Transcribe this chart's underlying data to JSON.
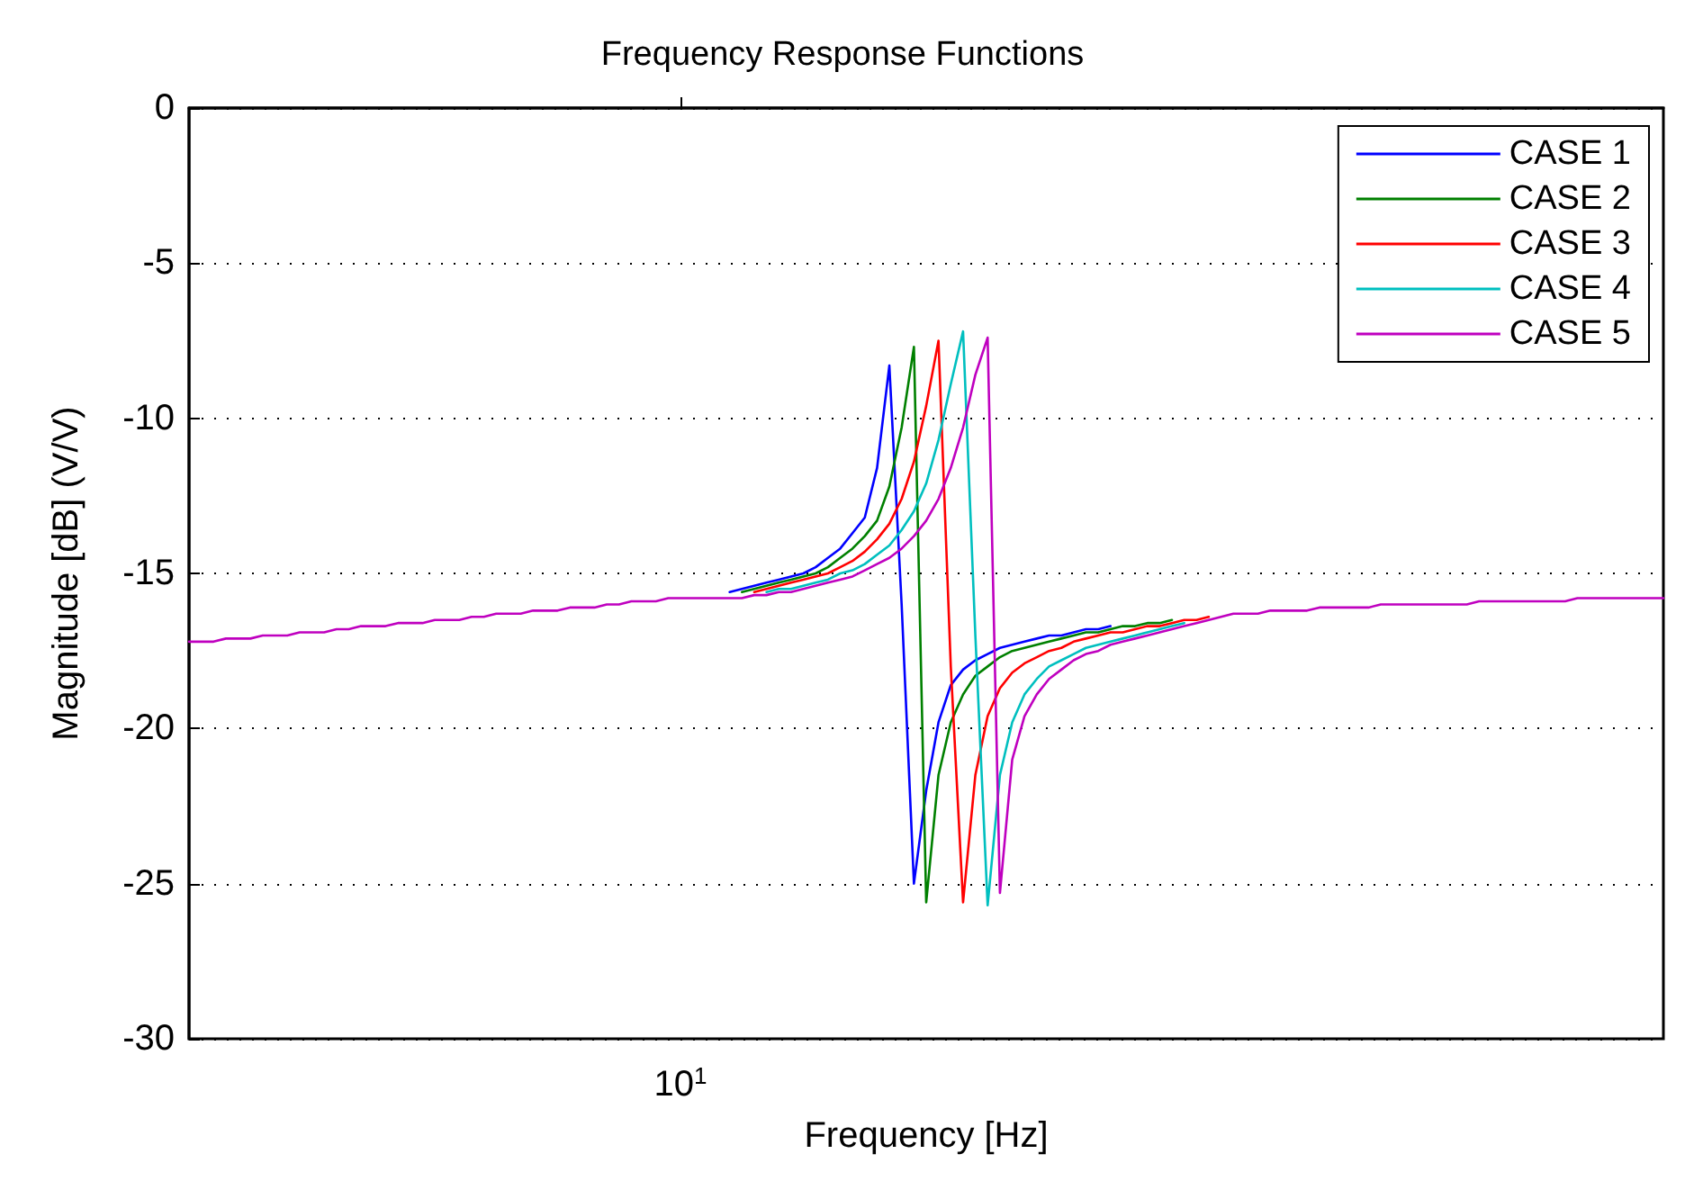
{
  "chart_data": {
    "type": "line",
    "title": "Frequency Response Functions",
    "xlabel": "Frequency [Hz]",
    "ylabel": "Magnitude [dB] (V/V)",
    "categories": [
      null,
      null,
      null,
      null,
      null,
      null,
      null,
      null,
      null,
      null,
      null,
      null,
      null,
      null,
      null,
      null,
      null,
      null,
      null,
      null,
      null,
      null,
      null,
      null,
      null,
      null,
      null,
      null,
      null,
      null,
      null,
      null,
      null,
      null,
      null,
      null,
      null,
      null,
      null,
      null,
      "10$^{1}$",
      null,
      null,
      null,
      null,
      null,
      null,
      null,
      null,
      null,
      null,
      null,
      null,
      null,
      null,
      null,
      null,
      null,
      null,
      null,
      null,
      null,
      null,
      null,
      null,
      null,
      null,
      null,
      null,
      null,
      null,
      null,
      null,
      null,
      null,
      null,
      null,
      null,
      null,
      null,
      null,
      null,
      null,
      null,
      null,
      null,
      null,
      null,
      null,
      null,
      null,
      null,
      null,
      null,
      null,
      null,
      null,
      null,
      null,
      null,
      null,
      null,
      null,
      null,
      null,
      null,
      null,
      null,
      null,
      null,
      null,
      null,
      null,
      null,
      null,
      null,
      null,
      null,
      null,
      null,
      null
    ],
    "ylim": [
      -30,
      0
    ],
    "yticks": [
      -30,
      -25,
      -20,
      -15,
      -10,
      -5,
      0
    ],
    "grid": "y",
    "legend": "top right",
    "marker": "none",
    "line_style": "solid",
    "series": [
      {
        "name": "CASE 1",
        "color": "#0000ff",
        "values": [
          null,
          null,
          null,
          null,
          null,
          null,
          null,
          null,
          null,
          null,
          null,
          null,
          null,
          null,
          null,
          null,
          null,
          null,
          null,
          null,
          null,
          null,
          null,
          null,
          null,
          null,
          null,
          null,
          null,
          null,
          null,
          null,
          null,
          null,
          null,
          null,
          null,
          null,
          null,
          null,
          null,
          null,
          null,
          null,
          -15.6,
          -15.5,
          -15.4,
          -15.3,
          -15.2,
          -15.1,
          -15.0,
          -14.8,
          -14.5,
          -14.2,
          -13.7,
          -13.2,
          -11.6,
          -8.3,
          -16.0,
          -25.0,
          -22.0,
          -19.8,
          -18.6,
          -18.1,
          -17.8,
          -17.6,
          -17.4,
          -17.3,
          -17.2,
          -17.1,
          -17.0,
          -17.0,
          -16.9,
          -16.8,
          -16.8,
          -16.7,
          null,
          null,
          null,
          null,
          null,
          null,
          null,
          null,
          null,
          null,
          null,
          null,
          null,
          null,
          null,
          null,
          null,
          null,
          null,
          null,
          null,
          null,
          null,
          null,
          null,
          null,
          null,
          null,
          null,
          null,
          null,
          null,
          null,
          null,
          null,
          null,
          null,
          null,
          null,
          null,
          null,
          null,
          null,
          null,
          null
        ]
      },
      {
        "name": "CASE 2",
        "color": "#008000",
        "values": [
          null,
          null,
          null,
          null,
          null,
          null,
          null,
          null,
          null,
          null,
          null,
          null,
          null,
          null,
          null,
          null,
          null,
          null,
          null,
          null,
          null,
          null,
          null,
          null,
          null,
          null,
          null,
          null,
          null,
          null,
          null,
          null,
          null,
          null,
          null,
          null,
          null,
          null,
          null,
          null,
          null,
          null,
          null,
          null,
          null,
          -15.6,
          -15.5,
          -15.4,
          -15.3,
          -15.2,
          -15.1,
          -15.0,
          -14.8,
          -14.5,
          -14.2,
          -13.8,
          -13.3,
          -12.2,
          -10.3,
          -7.7,
          -25.6,
          -21.5,
          -19.8,
          -18.9,
          -18.3,
          -18.0,
          -17.7,
          -17.5,
          -17.4,
          -17.3,
          -17.2,
          -17.1,
          -17.0,
          -16.9,
          -16.9,
          -16.8,
          -16.7,
          -16.7,
          -16.6,
          -16.6,
          -16.5,
          null,
          null,
          null,
          null,
          null,
          null,
          null,
          null,
          null,
          null,
          null,
          null,
          null,
          null,
          null,
          null,
          null,
          null,
          null,
          null,
          null,
          null,
          null,
          null,
          null,
          null,
          null,
          null,
          null,
          null,
          null,
          null,
          null,
          null,
          null,
          null,
          null,
          null,
          null,
          null
        ]
      },
      {
        "name": "CASE 3",
        "color": "#ff0000",
        "values": [
          null,
          null,
          null,
          null,
          null,
          null,
          null,
          null,
          null,
          null,
          null,
          null,
          null,
          null,
          null,
          null,
          null,
          null,
          null,
          null,
          null,
          null,
          null,
          null,
          null,
          null,
          null,
          null,
          null,
          null,
          null,
          null,
          null,
          null,
          null,
          null,
          null,
          null,
          null,
          null,
          null,
          null,
          null,
          null,
          null,
          null,
          -15.6,
          -15.5,
          -15.4,
          -15.3,
          -15.2,
          -15.1,
          -15.0,
          -14.8,
          -14.6,
          -14.3,
          -13.9,
          -13.4,
          -12.6,
          -11.4,
          -9.6,
          -7.5,
          -18.0,
          -25.6,
          -21.5,
          -19.6,
          -18.7,
          -18.2,
          -17.9,
          -17.7,
          -17.5,
          -17.4,
          -17.2,
          -17.1,
          -17.0,
          -16.9,
          -16.9,
          -16.8,
          -16.7,
          -16.7,
          -16.6,
          -16.5,
          -16.5,
          -16.4,
          null,
          null,
          null,
          null,
          null,
          null,
          null,
          null,
          null,
          null,
          null,
          null,
          null,
          null,
          null,
          null,
          null,
          null,
          null,
          null,
          null,
          null,
          null,
          null,
          null,
          null,
          null,
          null,
          null,
          null,
          null,
          null,
          null,
          null,
          null,
          null,
          null
        ]
      },
      {
        "name": "CASE 4",
        "color": "#00bfbf",
        "values": [
          null,
          null,
          null,
          null,
          null,
          null,
          null,
          null,
          null,
          null,
          null,
          null,
          null,
          null,
          null,
          null,
          null,
          null,
          null,
          null,
          null,
          null,
          null,
          null,
          null,
          null,
          null,
          null,
          null,
          null,
          null,
          null,
          null,
          null,
          null,
          null,
          null,
          null,
          null,
          null,
          null,
          null,
          null,
          null,
          null,
          null,
          null,
          -15.6,
          -15.5,
          -15.5,
          -15.4,
          -15.3,
          -15.2,
          -15.0,
          -14.9,
          -14.7,
          -14.4,
          -14.1,
          -13.6,
          -13.0,
          -12.1,
          -10.7,
          -8.9,
          -7.2,
          -17.0,
          -25.7,
          -21.5,
          -19.8,
          -18.9,
          -18.4,
          -18.0,
          -17.8,
          -17.6,
          -17.4,
          -17.3,
          -17.2,
          -17.1,
          -17.0,
          -16.9,
          -16.8,
          -16.7,
          -16.6,
          null,
          null,
          null,
          null,
          null,
          null,
          null,
          null,
          null,
          null,
          null,
          null,
          null,
          null,
          null,
          null,
          null,
          null,
          null,
          null,
          null,
          null,
          null,
          null,
          null,
          null,
          null,
          null,
          null,
          null,
          null,
          null,
          null,
          null,
          null,
          null,
          null,
          null,
          null
        ]
      },
      {
        "name": "CASE 5",
        "color": "#bf00bf",
        "values": [
          -17.2,
          -17.2,
          -17.2,
          -17.1,
          -17.1,
          -17.1,
          -17.0,
          -17.0,
          -17.0,
          -16.9,
          -16.9,
          -16.9,
          -16.8,
          -16.8,
          -16.7,
          -16.7,
          -16.7,
          -16.6,
          -16.6,
          -16.6,
          -16.5,
          -16.5,
          -16.5,
          -16.4,
          -16.4,
          -16.3,
          -16.3,
          -16.3,
          -16.2,
          -16.2,
          -16.2,
          -16.1,
          -16.1,
          -16.1,
          -16.0,
          -16.0,
          -15.9,
          -15.9,
          -15.9,
          -15.8,
          -15.8,
          -15.8,
          -15.8,
          -15.8,
          -15.8,
          -15.8,
          -15.7,
          -15.7,
          -15.6,
          -15.6,
          -15.5,
          -15.4,
          -15.3,
          -15.2,
          -15.1,
          -14.9,
          -14.7,
          -14.5,
          -14.2,
          -13.8,
          -13.3,
          -12.6,
          -11.6,
          -10.3,
          -8.6,
          -7.4,
          -25.3,
          -21.0,
          -19.6,
          -18.9,
          -18.4,
          -18.1,
          -17.8,
          -17.6,
          -17.5,
          -17.3,
          -17.2,
          -17.1,
          -17.0,
          -16.9,
          -16.8,
          -16.7,
          -16.6,
          -16.5,
          -16.4,
          -16.3,
          -16.3,
          -16.3,
          -16.2,
          -16.2,
          -16.2,
          -16.2,
          -16.1,
          -16.1,
          -16.1,
          -16.1,
          -16.1,
          -16.0,
          -16.0,
          -16.0,
          -16.0,
          -16.0,
          -16.0,
          -16.0,
          -16.0,
          -15.9,
          -15.9,
          -15.9,
          -15.9,
          -15.9,
          -15.9,
          -15.9,
          -15.9,
          -15.8,
          -15.8,
          -15.8,
          -15.8,
          -15.8,
          -15.8,
          -15.8,
          -15.8
        ]
      }
    ]
  }
}
